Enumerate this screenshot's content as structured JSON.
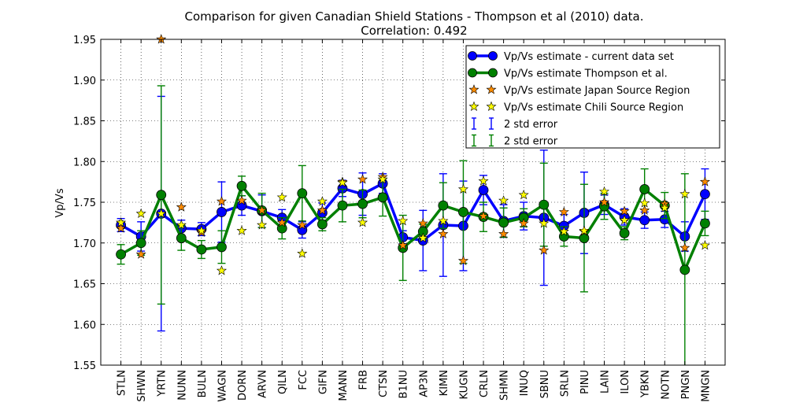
{
  "chart_data": {
    "type": "line",
    "title": "Comparison for given Canadian Shield Stations - Thompson et al (2010) data.",
    "subtitle": "Correlation: 0.492",
    "xlabel": "",
    "ylabel": "Vp/Vs",
    "ylim": [
      1.55,
      1.95
    ],
    "yticks": [
      "1.55",
      "1.60",
      "1.65",
      "1.70",
      "1.75",
      "1.80",
      "1.85",
      "1.90",
      "1.95"
    ],
    "grid": true,
    "legend_position": "top-right",
    "categories": [
      "STLN",
      "SHWN",
      "YRTN",
      "NUNN",
      "BULN",
      "WAGN",
      "DORN",
      "ARVN",
      "QILN",
      "FCC",
      "GIFN",
      "MANN",
      "FRB",
      "CTSN",
      "B1NU",
      "AP3N",
      "KIMN",
      "KUGN",
      "CRLN",
      "SHMN",
      "INUQ",
      "SBNU",
      "SRLN",
      "PINU",
      "LAIN",
      "ILON",
      "YBKN",
      "NOTN",
      "PNGN",
      "MNGN"
    ],
    "series": [
      {
        "name": "Vp/Vs estimate -  current data set",
        "color": "#0000ff",
        "values": [
          1.722,
          1.708,
          1.736,
          1.718,
          1.717,
          1.738,
          1.746,
          1.739,
          1.731,
          1.716,
          1.737,
          1.767,
          1.76,
          1.773,
          1.707,
          1.703,
          1.722,
          1.721,
          1.765,
          1.727,
          1.733,
          1.731,
          1.721,
          1.737,
          1.747,
          1.732,
          1.728,
          1.729,
          1.708,
          1.76
        ],
        "error": [
          0.008,
          0.018,
          0.144,
          0.01,
          0.008,
          0.037,
          0.012,
          0.02,
          0.01,
          0.01,
          0.012,
          0.01,
          0.026,
          0.012,
          0.008,
          0.037,
          0.063,
          0.055,
          0.018,
          0.02,
          0.017,
          0.083,
          0.014,
          0.05,
          0.012,
          0.01,
          0.01,
          0.01,
          0.018,
          0.031
        ]
      },
      {
        "name": "Vp/Vs estimate Thompson et al.",
        "color": "#008000",
        "values": [
          1.686,
          1.7,
          1.759,
          1.706,
          1.692,
          1.695,
          1.77,
          1.74,
          1.718,
          1.761,
          1.723,
          1.746,
          1.748,
          1.756,
          1.694,
          1.714,
          1.746,
          1.738,
          1.732,
          1.725,
          1.731,
          1.747,
          1.708,
          1.706,
          1.745,
          1.712,
          1.766,
          1.746,
          1.667,
          1.724
        ],
        "error": [
          0.012,
          0.015,
          0.134,
          0.015,
          0.011,
          0.02,
          0.012,
          0.021,
          0.013,
          0.034,
          0.008,
          0.02,
          0.017,
          0.023,
          0.04,
          0.009,
          0.028,
          0.063,
          0.018,
          0.018,
          0.011,
          0.051,
          0.012,
          0.066,
          0.016,
          0.008,
          0.025,
          0.016,
          0.118,
          0.015
        ]
      },
      {
        "name": "Vp/Vs estimate Japan Source Region",
        "color": "#ff8c00",
        "values": [
          1.718,
          1.686,
          1.95,
          1.744,
          1.713,
          1.751,
          1.752,
          1.74,
          1.725,
          1.722,
          1.74,
          1.775,
          1.778,
          1.781,
          1.697,
          1.724,
          1.711,
          1.678,
          1.733,
          1.711,
          1.724,
          1.691,
          1.738,
          1.714,
          1.75,
          1.739,
          1.74,
          1.748,
          1.694,
          1.775
        ]
      },
      {
        "name": "Vp/Vs estimate Chili Source Region",
        "color": "#ffff00",
        "values": [
          1.725,
          1.736,
          1.736,
          1.722,
          1.715,
          1.666,
          1.715,
          1.722,
          1.756,
          1.687,
          1.751,
          1.774,
          1.725,
          1.778,
          1.727,
          1.706,
          1.727,
          1.766,
          1.776,
          1.752,
          1.759,
          1.724,
          1.714,
          1.715,
          1.763,
          1.728,
          1.749,
          1.743,
          1.76,
          1.697
        ]
      }
    ],
    "legend": [
      {
        "label": "Vp/Vs estimate -  current data set",
        "kind": "line-marker",
        "color": "#0000ff"
      },
      {
        "label": "Vp/Vs estimate Thompson et al.",
        "kind": "line-marker",
        "color": "#008000"
      },
      {
        "label": "Vp/Vs estimate Japan Source Region",
        "kind": "star",
        "color": "#ff8c00"
      },
      {
        "label": "Vp/Vs estimate Chili Source Region",
        "kind": "star",
        "color": "#ffff00"
      },
      {
        "label": "2 std error",
        "kind": "errorbar",
        "color": "#0000ff"
      },
      {
        "label": "2 std error",
        "kind": "errorbar",
        "color": "#008000"
      }
    ]
  }
}
